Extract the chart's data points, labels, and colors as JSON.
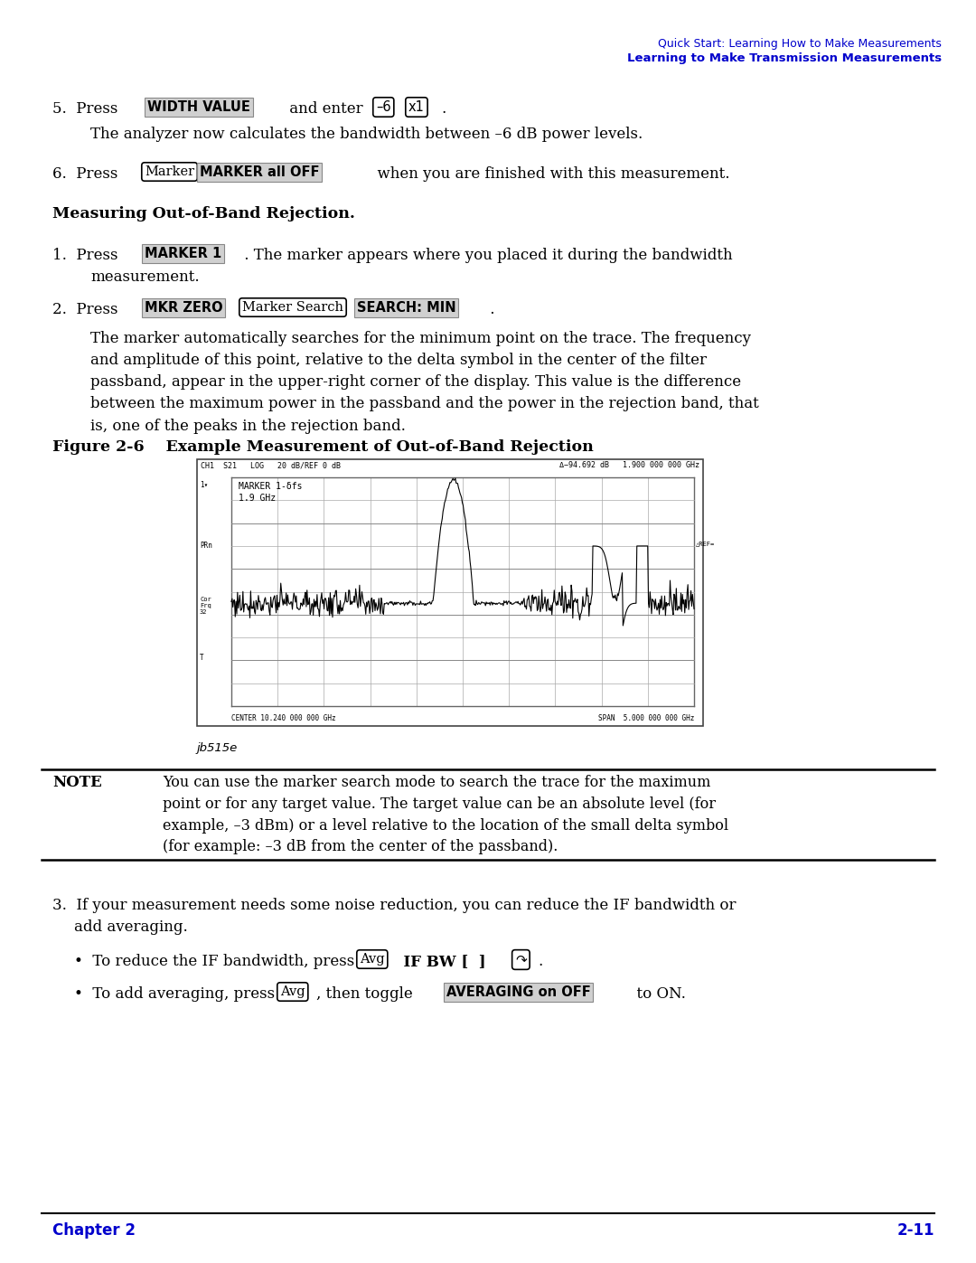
{
  "bg_color": "#ffffff",
  "text_color": "#000000",
  "blue_color": "#0000cc",
  "header_line1": "Quick Start: Learning How to Make Measurements",
  "header_line2": "Learning to Make Transmission Measurements",
  "footer_left": "Chapter 2",
  "footer_right": "2-11",
  "fig_label": "Figure 2-6    Example Measurement of Out-of-Band Rejection",
  "fig_caption": "jb515e",
  "note_title": "NOTE",
  "note_text": "You can use the marker search mode to search the trace for the maximum\npoint or for any target value. The target value can be an absolute level (for\nexample, –3 dBm) or a level relative to the location of the small delta symbol\n(for example: –3 dB from the center of the passband).",
  "header_text": "Δ−94.692 dB   1.900 000 000 GHz",
  "header_left": "CH1  S21   LOG   20 dB/REF 0 dB",
  "center_label": "CENTER 10.240 000 000 GHz",
  "span_label": "SPAN  5.000 000 000 GHz"
}
